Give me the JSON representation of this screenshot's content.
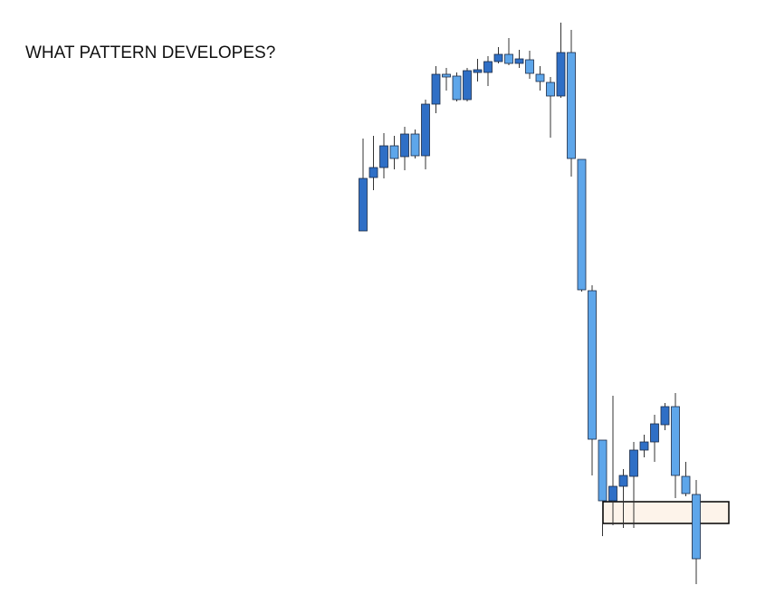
{
  "chart_data": {
    "type": "candlestick",
    "title": "WHAT PATTERN DEVELOPES?",
    "open": [
      445,
      504,
      515,
      539,
      527,
      552,
      528,
      585,
      618,
      616,
      590,
      620,
      620,
      632,
      640,
      630,
      634,
      618,
      609,
      594,
      642,
      524,
      379,
      214,
      147,
      163,
      174,
      203,
      212,
      231,
      251,
      174,
      154
    ],
    "high": [
      547,
      550,
      553,
      550,
      560,
      557,
      590,
      627,
      625,
      620,
      625,
      635,
      638,
      648,
      658,
      645,
      644,
      627,
      615,
      675,
      667,
      524,
      385,
      214,
      263,
      182,
      212,
      220,
      242,
      255,
      266,
      190,
      170
    ],
    "low": [
      445,
      490,
      503,
      513,
      512,
      525,
      513,
      575,
      600,
      588,
      588,
      610,
      605,
      630,
      628,
      625,
      613,
      600,
      548,
      592,
      505,
      378,
      175,
      108,
      120,
      117,
      117,
      195,
      190,
      225,
      150,
      152,
      55
    ],
    "close": [
      503,
      515,
      539,
      525,
      552,
      528,
      585,
      618,
      615,
      590,
      622,
      623,
      632,
      640,
      630,
      635,
      619,
      610,
      594,
      642,
      525,
      380,
      215,
      147,
      163,
      175,
      203,
      212,
      232,
      251,
      175,
      155,
      83
    ],
    "up_color": "#2f6fc6",
    "down_color": "#5ea6ea",
    "zone": [
      122,
      146
    ],
    "zone_color": "#fdf3ea",
    "ylim": [
      40,
      680
    ]
  }
}
